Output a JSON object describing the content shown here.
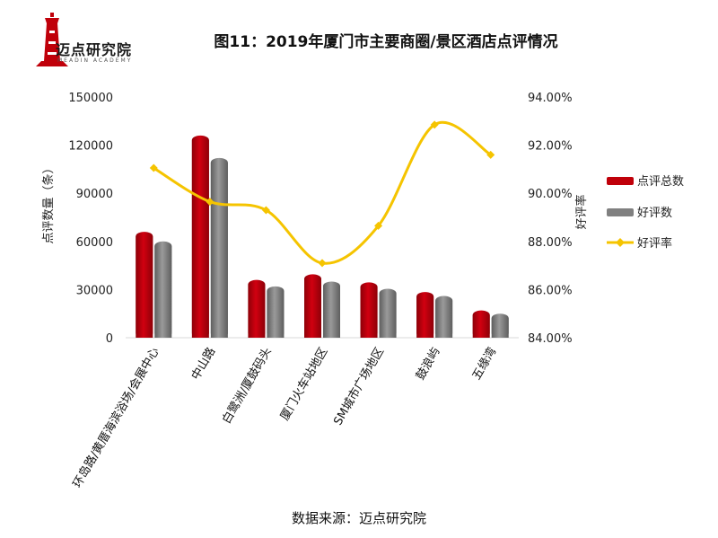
{
  "header": {
    "title": "图11：2019年厦门市主要商圈/景区酒店点评情况",
    "logo_text": "迈点研究院",
    "logo_subtext": "MEADIN ACADEMY"
  },
  "footer": {
    "source": "数据来源：迈点研究院"
  },
  "colors": {
    "total": "#c0000a",
    "good": "#808080",
    "rate": "#f5c400"
  },
  "chart_data": {
    "type": "bar",
    "title": "图11：2019年厦门市主要商圈/景区酒店点评情况",
    "categories": [
      "环岛路/黄厝海滨浴场/会展中心",
      "中山路",
      "白鹭洲/厦鼓码头",
      "厦门火车站地区",
      "SM城市广场地区",
      "鼓浪屿",
      "五缘湾"
    ],
    "series": [
      {
        "name": "点评总数",
        "axis": "left",
        "type": "bar",
        "values": [
          66000,
          126000,
          36000,
          39500,
          34500,
          28500,
          17000
        ]
      },
      {
        "name": "好评数",
        "axis": "left",
        "type": "bar",
        "values": [
          60000,
          112000,
          32000,
          35000,
          30500,
          26000,
          15000
        ]
      },
      {
        "name": "好评率",
        "axis": "right",
        "type": "line",
        "values": [
          0.9105,
          0.8965,
          0.893,
          0.871,
          0.8865,
          0.9285,
          0.916
        ]
      }
    ],
    "ylabel": "点评数量（条）",
    "y2label": "好评率",
    "ylim": [
      0,
      150000
    ],
    "yticks": [
      "150000",
      "120000",
      "90000",
      "60000",
      "30000",
      "0"
    ],
    "y2lim": [
      0.84,
      0.94
    ],
    "y2ticks": [
      "94.00%",
      "92.00%",
      "90.00%",
      "88.00%",
      "86.00%",
      "84.00%"
    ],
    "legend": [
      "点评总数",
      "好评数",
      "好评率"
    ],
    "legend_position": "right",
    "grid": false
  }
}
